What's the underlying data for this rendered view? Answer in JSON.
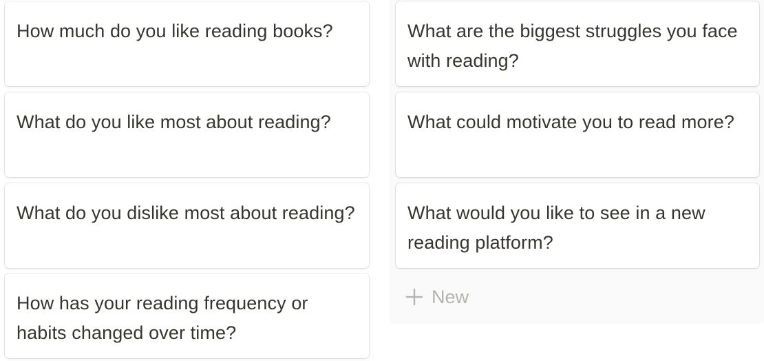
{
  "board": {
    "columns": [
      {
        "cards": [
          {
            "title": "How much do you like reading books?"
          },
          {
            "title": "What do you like most about reading?"
          },
          {
            "title": "What do you dislike most about reading?"
          },
          {
            "title": "How has your reading frequency or habits changed over time?"
          }
        ]
      },
      {
        "cards": [
          {
            "title": "What are the biggest struggles you face with reading?"
          },
          {
            "title": "What could motivate you to read more?"
          },
          {
            "title": "What would you like to see in a new reading platform?"
          }
        ],
        "new_label": "New"
      }
    ]
  },
  "colors": {
    "text": "#37352f",
    "muted": "#b4b3af",
    "column_bg": "#fafafa",
    "card_bg": "#ffffff"
  },
  "icons": {
    "new": "plus-icon"
  }
}
